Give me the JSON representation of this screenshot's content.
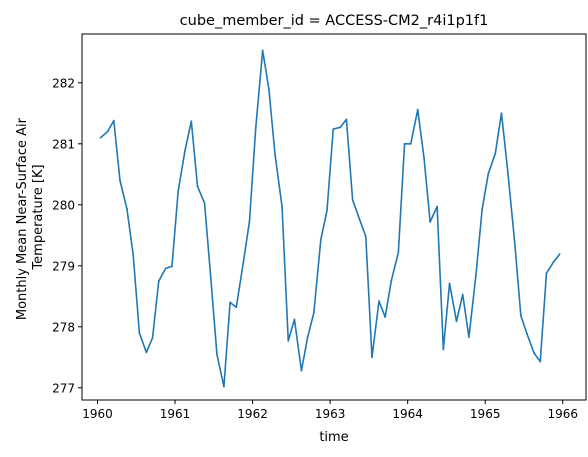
{
  "chart_data": {
    "type": "line",
    "title": "cube_member_id = ACCESS-CM2_r4i1p1f1",
    "xlabel": "time",
    "ylabel_lines": [
      "Monthly Mean Near-Surface Air",
      "Temperature [K]"
    ],
    "xlim": [
      1959.8,
      1966.3
    ],
    "ylim": [
      276.8,
      282.8
    ],
    "x_ticks": [
      {
        "value": 1960,
        "label": "1960"
      },
      {
        "value": 1961,
        "label": "1961"
      },
      {
        "value": 1962,
        "label": "1962"
      },
      {
        "value": 1963,
        "label": "1963"
      },
      {
        "value": 1964,
        "label": "1964"
      },
      {
        "value": 1965,
        "label": "1965"
      },
      {
        "value": 1966,
        "label": "1966"
      }
    ],
    "y_ticks": [
      {
        "value": 277,
        "label": "277"
      },
      {
        "value": 278,
        "label": "278"
      },
      {
        "value": 279,
        "label": "279"
      },
      {
        "value": 280,
        "label": "280"
      },
      {
        "value": 281,
        "label": "281"
      },
      {
        "value": 282,
        "label": "282"
      }
    ],
    "grid": false,
    "line_color": "#1f77b4",
    "series": [
      {
        "x": [
          1960.04,
          1960.13,
          1960.21,
          1960.29,
          1960.38,
          1960.46,
          1960.54,
          1960.63,
          1960.71,
          1960.79,
          1960.88,
          1960.96,
          1961.04,
          1961.13,
          1961.21,
          1961.29,
          1961.38,
          1961.46,
          1961.54,
          1961.63,
          1961.71,
          1961.79,
          1961.88,
          1961.96,
          1962.04,
          1962.13,
          1962.21,
          1962.29,
          1962.38,
          1962.46,
          1962.54,
          1962.63,
          1962.71,
          1962.79,
          1962.88,
          1962.96,
          1963.04,
          1963.13,
          1963.21,
          1963.29,
          1963.38,
          1963.46,
          1963.54,
          1963.63,
          1963.71,
          1963.79,
          1963.88,
          1963.96,
          1964.04,
          1964.13,
          1964.21,
          1964.29,
          1964.38,
          1964.46,
          1964.54,
          1964.63,
          1964.71,
          1964.79,
          1964.88,
          1964.96,
          1965.04,
          1965.13,
          1965.21,
          1965.29,
          1965.38,
          1965.46,
          1965.54,
          1965.63,
          1965.71,
          1965.79,
          1965.88,
          1965.96
        ],
        "y": [
          281.1,
          281.2,
          281.38,
          280.4,
          279.93,
          279.18,
          277.9,
          277.58,
          277.82,
          278.75,
          278.96,
          278.99,
          280.22,
          280.9,
          281.37,
          280.3,
          280.03,
          278.82,
          277.55,
          277.02,
          278.4,
          278.32,
          279.05,
          279.73,
          281.25,
          282.53,
          281.9,
          280.82,
          279.97,
          277.77,
          278.12,
          277.28,
          277.83,
          278.23,
          279.43,
          279.91,
          281.24,
          281.27,
          281.4,
          280.08,
          279.76,
          279.48,
          277.5,
          278.42,
          278.16,
          278.76,
          279.22,
          281.0,
          281.0,
          281.56,
          280.78,
          279.72,
          279.97,
          277.63,
          278.71,
          278.09,
          278.53,
          277.83,
          278.84,
          279.92,
          280.51,
          280.84,
          281.5,
          280.56,
          279.39,
          278.18,
          277.88,
          277.57,
          277.43,
          278.88,
          279.06,
          279.19
        ]
      }
    ]
  }
}
